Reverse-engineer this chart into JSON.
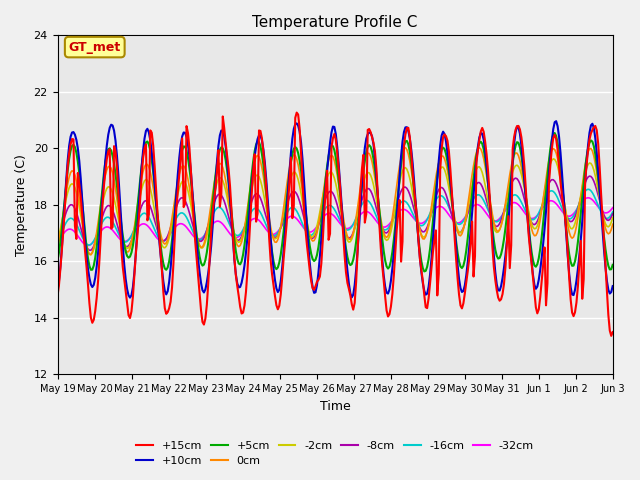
{
  "title": "Temperature Profile C",
  "xlabel": "Time",
  "ylabel": "Temperature (C)",
  "ylim": [
    12,
    24
  ],
  "yticks": [
    12,
    14,
    16,
    18,
    20,
    22,
    24
  ],
  "date_labels": [
    "May 19",
    "May 20",
    "May 21",
    "May 22",
    "May 23",
    "May 24",
    "May 25",
    "May 26",
    "May 27",
    "May 28",
    "May 29",
    "May 30",
    "May 31",
    "Jun 1",
    "Jun 2",
    "Jun 3"
  ],
  "series_colors": {
    "+15cm": "#ff0000",
    "+10cm": "#0000cc",
    "+5cm": "#00aa00",
    "0cm": "#ff8800",
    "-2cm": "#cccc00",
    "-8cm": "#aa00aa",
    "-16cm": "#00cccc",
    "-32cm": "#ff00ff"
  },
  "annotation_text": "GT_met",
  "annotation_color": "#cc0000",
  "annotation_bg": "#ffff99",
  "annotation_border": "#aa8800",
  "plot_bg": "#e8e8e8",
  "n_points": 384,
  "seed": 42
}
